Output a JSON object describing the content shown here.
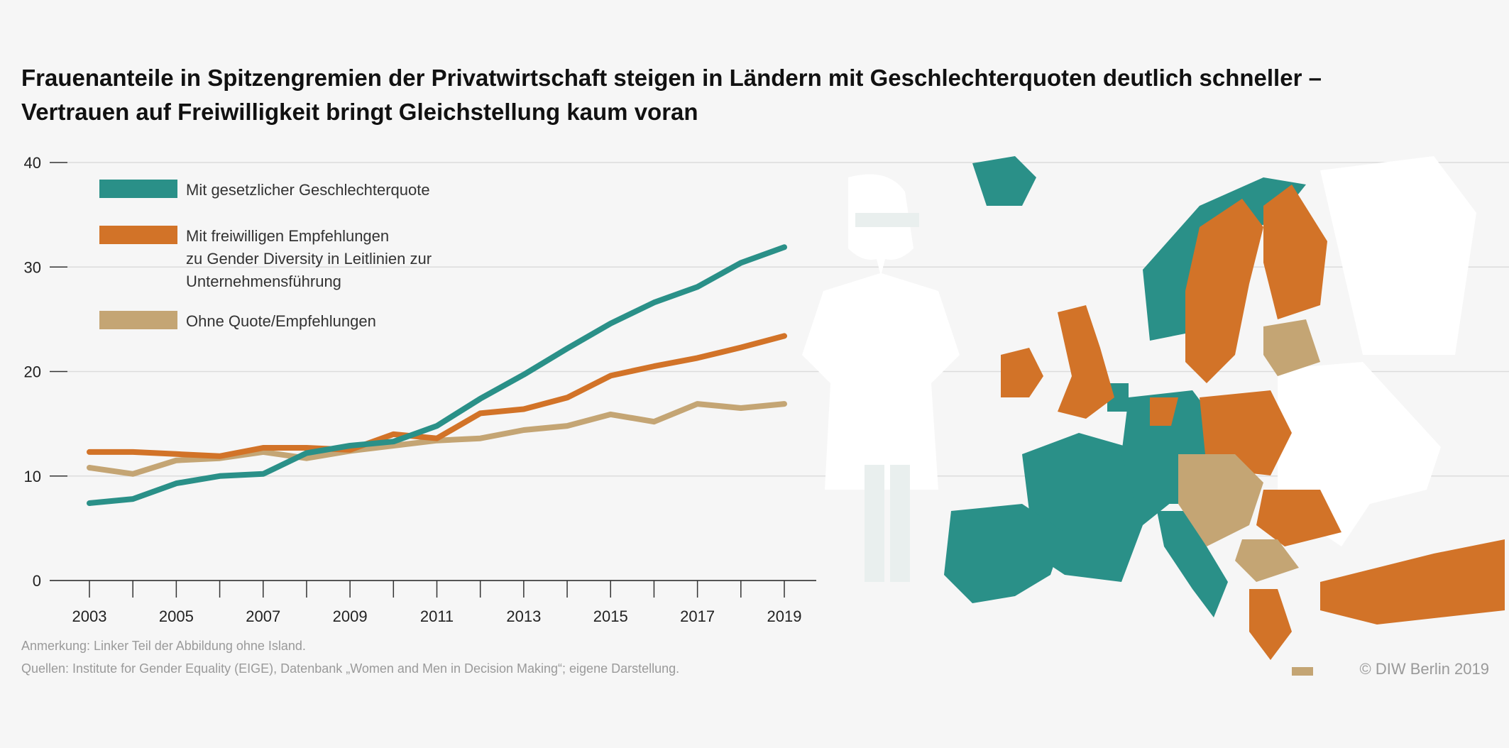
{
  "title": "Frauenanteile in Spitzengremien der Privatwirtschaft steigen in Ländern mit Geschlechterquoten deutlich schneller – Vertrauen auf Freiwilligkeit bringt Gleichstellung kaum voran",
  "notes": {
    "annotation": "Anmerkung: Linker Teil der Abbildung ohne Island.",
    "sources": "Quellen: Institute for Gender Equality (EIGE), Datenbank „Women and Men in Decision Making“; eigene Darstellung.",
    "copyright": "© DIW Berlin 2019"
  },
  "colors": {
    "quota": "#2a9088",
    "voluntary": "#d27328",
    "none": "#c4a574",
    "background": "#f6f6f6",
    "non_eu": "#ffffff"
  },
  "chart_data": {
    "type": "line",
    "title": "",
    "xlabel": "",
    "ylabel": "",
    "x": [
      2003,
      2004,
      2005,
      2006,
      2007,
      2008,
      2009,
      2010,
      2011,
      2012,
      2013,
      2014,
      2015,
      2016,
      2017,
      2018,
      2019
    ],
    "x_tick_labels": [
      "2003",
      "2005",
      "2007",
      "2009",
      "2011",
      "2013",
      "2015",
      "2017",
      "2019"
    ],
    "y_tick_labels": [
      "0",
      "10",
      "20",
      "30",
      "40"
    ],
    "ylim": [
      0,
      40
    ],
    "grid": "horizontal",
    "legend_position": "top-left",
    "series": [
      {
        "name": "Mit gesetzlicher Geschlechterquote",
        "legend_lines": [
          "Mit gesetzlicher Geschlechterquote"
        ],
        "color": "#2a9088",
        "values": [
          7.4,
          7.8,
          9.3,
          10.0,
          10.2,
          12.2,
          12.9,
          13.3,
          14.8,
          17.4,
          19.7,
          22.2,
          24.6,
          26.6,
          28.1,
          30.4,
          31.9
        ]
      },
      {
        "name": "Mit freiwilligen Empfehlungen zu Gender Diversity in Leitlinien zur Unternehmensführung",
        "legend_lines": [
          "Mit freiwilligen Empfehlungen",
          "zu Gender Diversity in Leitlinien zur",
          "Unternehmensführung"
        ],
        "color": "#d27328",
        "values": [
          12.3,
          12.3,
          12.1,
          11.9,
          12.7,
          12.7,
          12.5,
          14.0,
          13.6,
          16.0,
          16.4,
          17.5,
          19.6,
          20.5,
          21.3,
          22.3,
          23.4
        ]
      },
      {
        "name": "Ohne Quote/Empfehlungen",
        "legend_lines": [
          "Ohne Quote/Empfehlungen"
        ],
        "color": "#c4a574",
        "values": [
          10.8,
          10.2,
          11.5,
          11.7,
          12.3,
          11.7,
          12.4,
          12.9,
          13.4,
          13.6,
          14.4,
          14.8,
          15.9,
          15.2,
          16.9,
          16.5,
          16.9
        ]
      }
    ]
  }
}
